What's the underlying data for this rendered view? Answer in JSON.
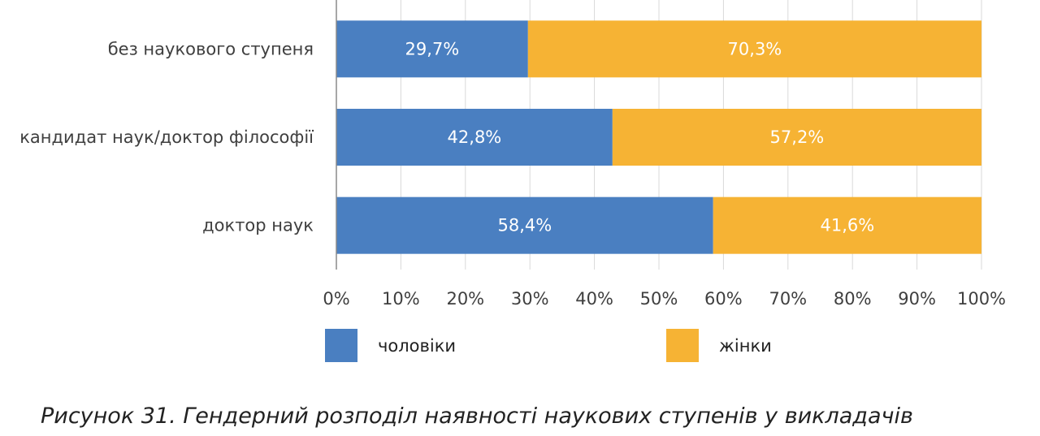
{
  "chart_data": {
    "type": "bar",
    "orientation": "horizontal",
    "stacked": true,
    "categories": [
      "без наукового ступеня",
      "кандидат наук/доктор філософії",
      "доктор наук"
    ],
    "series": [
      {
        "name": "чоловіки",
        "color": "#4a7fc1",
        "values": [
          29.7,
          42.8,
          58.4
        ],
        "labels": [
          "29,7%",
          "42,8%",
          "58,4%"
        ]
      },
      {
        "name": "жінки",
        "color": "#f6b334",
        "values": [
          70.3,
          57.2,
          41.6
        ],
        "labels": [
          "70,3%",
          "57,2%",
          "41,6%"
        ]
      }
    ],
    "xlim": [
      0,
      100
    ],
    "x_ticks": [
      "0%",
      "10%",
      "20%",
      "30%",
      "40%",
      "50%",
      "60%",
      "70%",
      "80%",
      "90%",
      "100%"
    ],
    "grid": true,
    "legend_position": "bottom"
  },
  "caption": "Рисунок 31. Гендерний розподіл наявності наукових ступенів у викладачів"
}
